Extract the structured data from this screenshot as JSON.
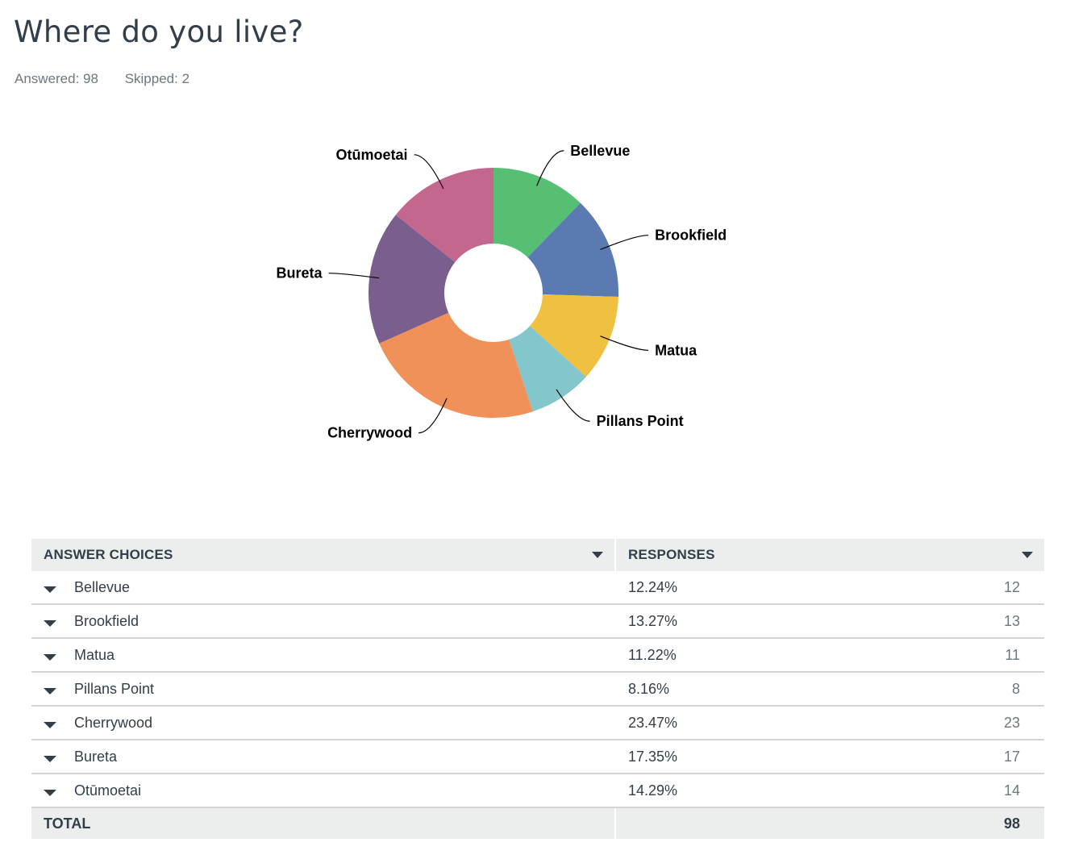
{
  "question": {
    "title": "Where do you live?",
    "answered": "Answered: 98",
    "skipped": "Skipped: 2"
  },
  "table": {
    "headers": [
      "ANSWER CHOICES",
      "RESPONSES"
    ],
    "rows": [
      {
        "label": "Bellevue",
        "percent": "12.24%",
        "count": "12"
      },
      {
        "label": "Brookfield",
        "percent": "13.27%",
        "count": "13"
      },
      {
        "label": "Matua",
        "percent": "11.22%",
        "count": "11"
      },
      {
        "label": "Pillans Point",
        "percent": "8.16%",
        "count": "8"
      },
      {
        "label": "Cherrywood",
        "percent": "23.47%",
        "count": "23"
      },
      {
        "label": "Bureta",
        "percent": "17.35%",
        "count": "17"
      },
      {
        "label": "Otūmoetai",
        "percent": "14.29%",
        "count": "14"
      }
    ],
    "total_label": "TOTAL",
    "total_value": "98"
  },
  "chart_data": {
    "type": "pie",
    "title": "Where do you live?",
    "categories": [
      "Bellevue",
      "Brookfield",
      "Matua",
      "Pillans Point",
      "Cherrywood",
      "Bureta",
      "Otūmoetai"
    ],
    "values": [
      12,
      13,
      11,
      8,
      23,
      17,
      14
    ],
    "colors": [
      "#57bf74",
      "#5a7ab1",
      "#f0c040",
      "#83c6cb",
      "#f0915a",
      "#7a5e8e",
      "#c4678e"
    ]
  }
}
